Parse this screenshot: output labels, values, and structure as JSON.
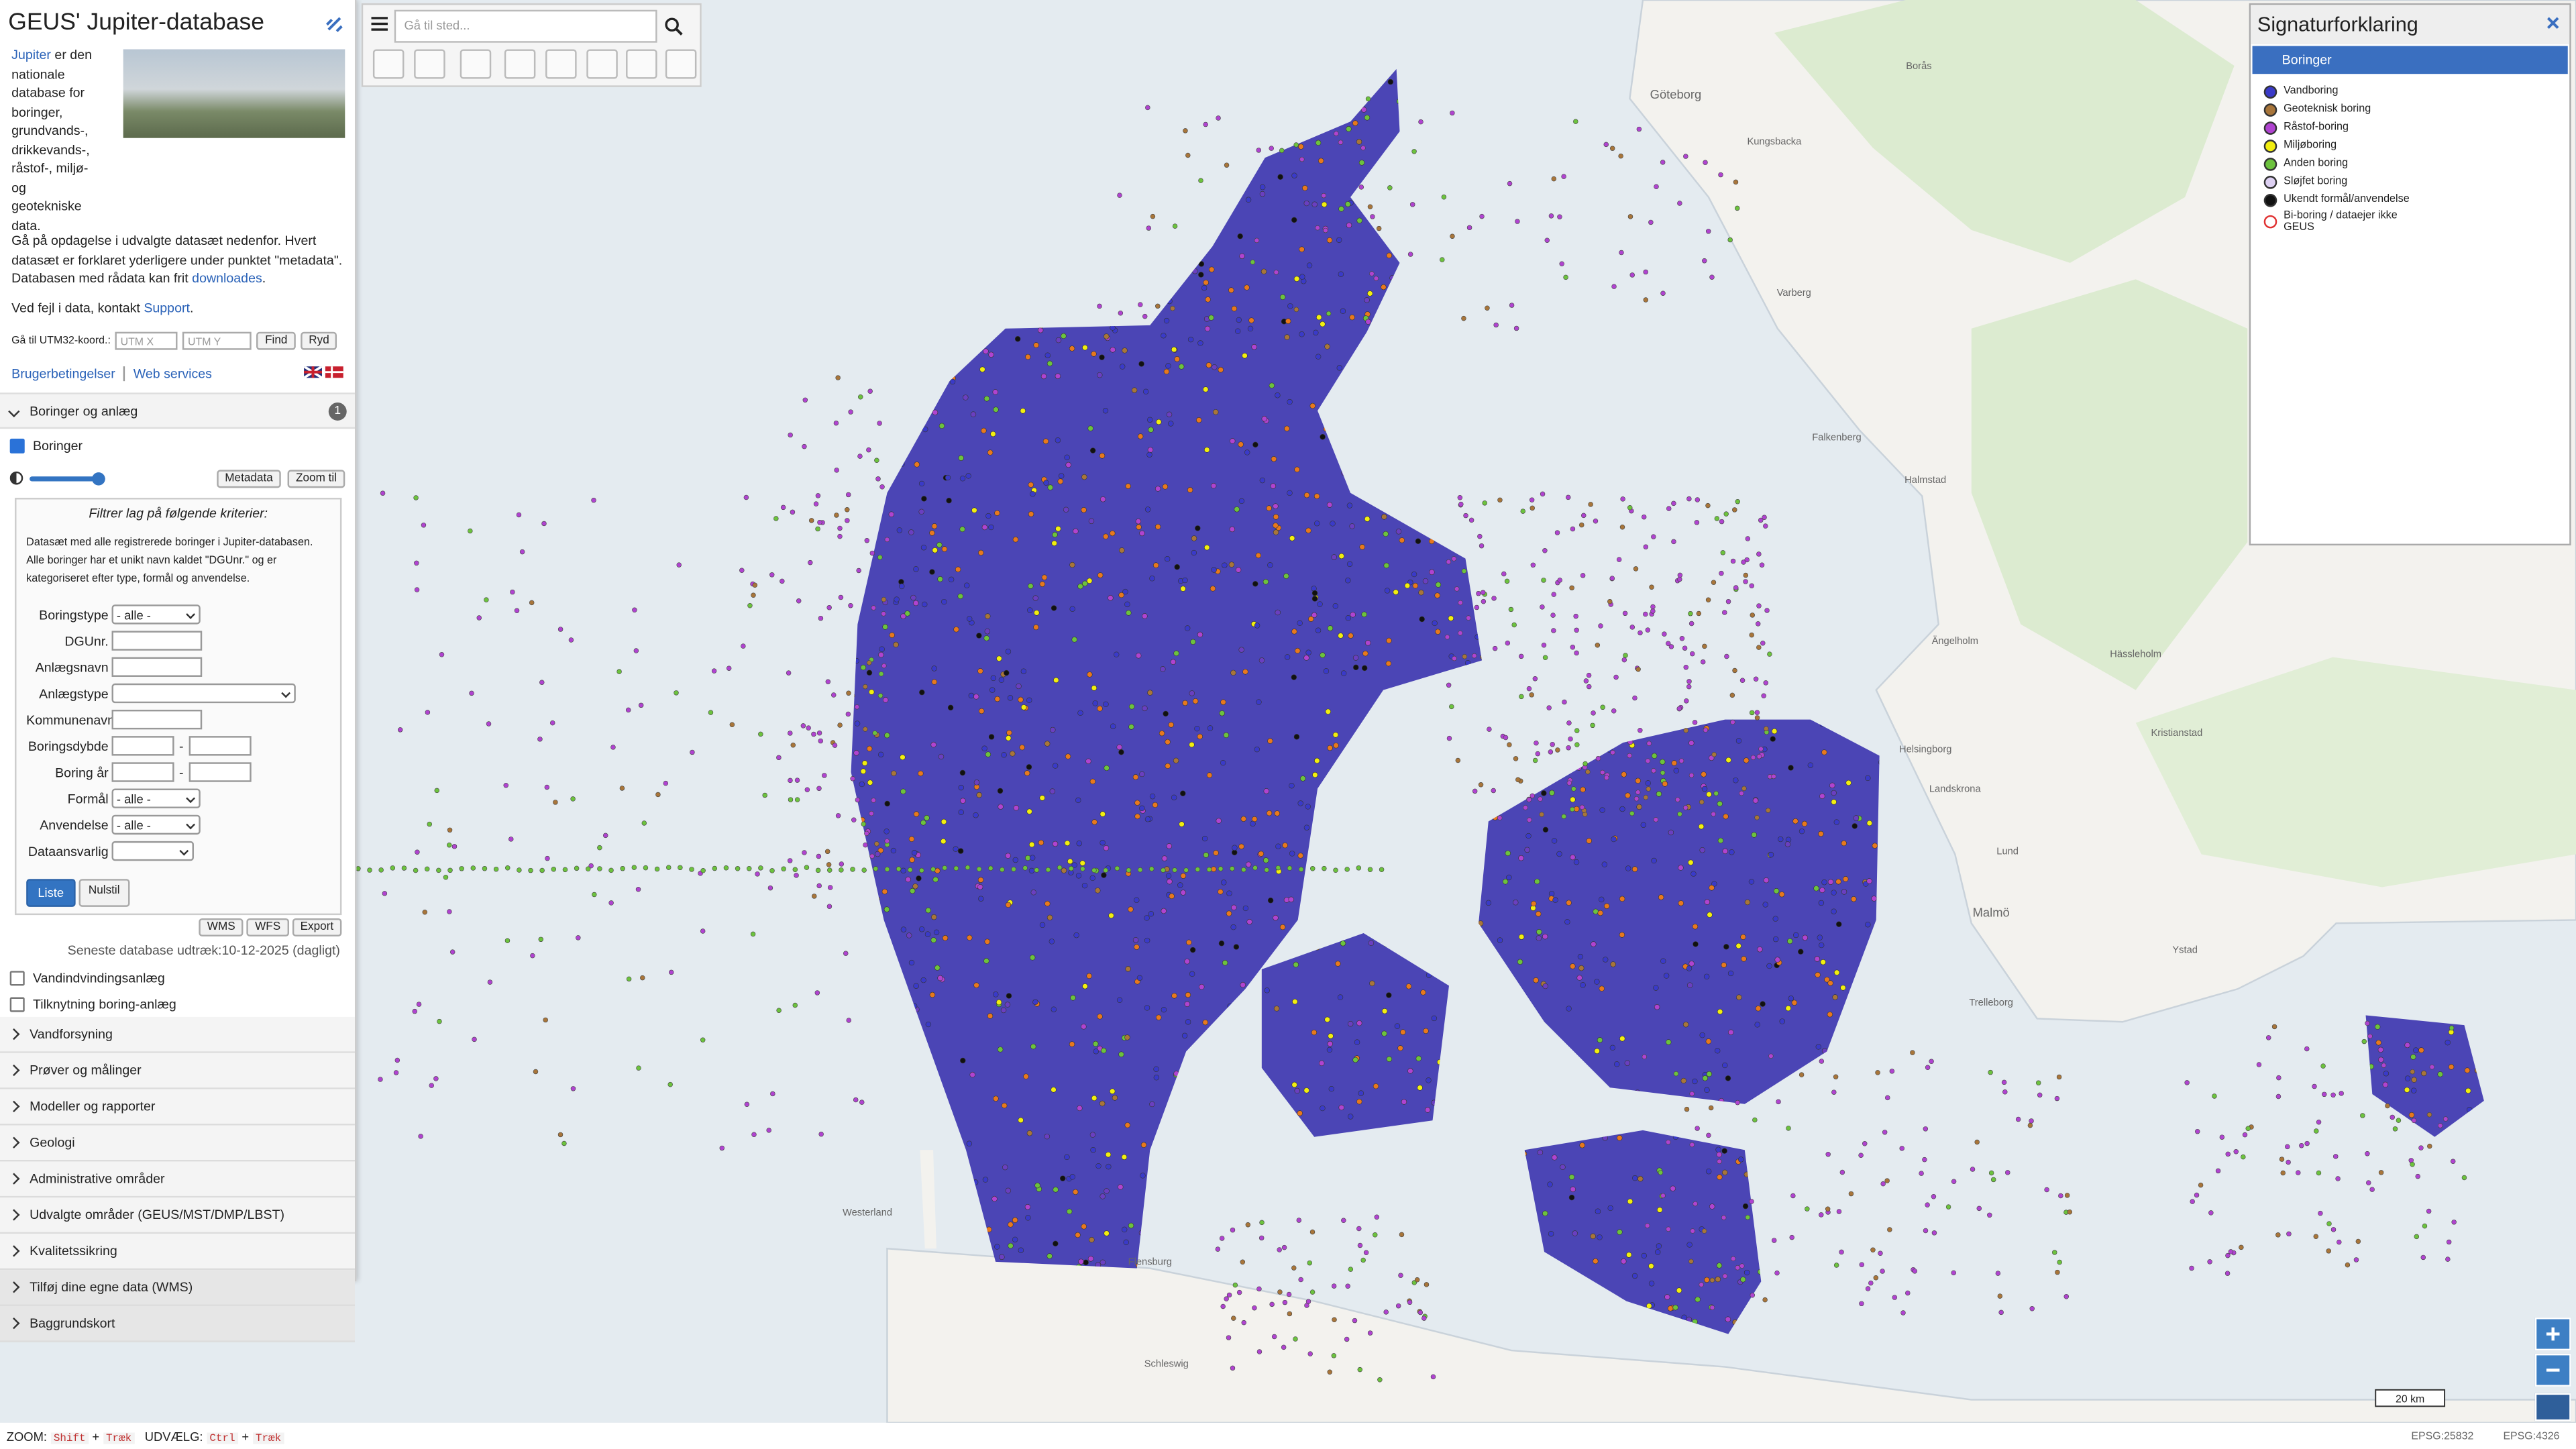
{
  "header": {
    "title": "GEUS' Jupiter-database"
  },
  "intro": {
    "link": "Jupiter",
    "text": "er den nationale database for boringer, grundvands-, drikkevands-, råstof-, miljø- og geotekniske data."
  },
  "explore": {
    "text": "Gå på opdagelse i udvalgte datasæt nedenfor. Hvert datasæt er forklaret yderligere under punktet \"metadata\". Databasen med rådata kan frit",
    "link": "downloades",
    "end": "."
  },
  "contact": {
    "text": "Ved fejl i data, kontakt",
    "link": "Support",
    "end": "."
  },
  "utm": {
    "label": "Gå til UTM32-koord.:",
    "x_placeholder": "UTM X",
    "y_placeholder": "UTM Y",
    "find": "Find",
    "clear": "Ryd"
  },
  "links": {
    "terms": "Brugerbetingelser",
    "services": "Web services"
  },
  "layer_group": {
    "title": "Boringer og anlæg",
    "badge": "1",
    "layer": "Boringer",
    "metadata": "Metadata",
    "zoom": "Zoom til",
    "filter_title": "Filtrer lag på følgende kriterier:",
    "filter_text": "Datasæt med alle registrerede boringer i Jupiter-databasen. Alle boringer har et unikt navn kaldet \"DGUnr.\" og er kategoriseret efter type, formål og anvendelse.",
    "fields": [
      {
        "label": "Boringstype",
        "kind": "select",
        "value": "- alle -"
      },
      {
        "label": "DGUnr.",
        "kind": "input"
      },
      {
        "label": "Anlægsnavn",
        "kind": "input"
      },
      {
        "label": "Anlægstype",
        "kind": "select-wide"
      },
      {
        "label": "Kommunenavn",
        "kind": "input"
      },
      {
        "label": "Boringsdybde",
        "kind": "range",
        "separator": "-"
      },
      {
        "label": "Boring år",
        "kind": "range",
        "separator": "-"
      },
      {
        "label": "Formål",
        "kind": "select",
        "value": "- alle -"
      },
      {
        "label": "Anvendelse",
        "kind": "select",
        "value": "- alle -"
      },
      {
        "label": "Dataansvarlig",
        "kind": "select-small"
      }
    ],
    "list_button": "Liste",
    "reset_button": "Nulstil",
    "exports": [
      "WMS",
      "WFS",
      "Export"
    ],
    "extract": "Seneste database udtræk:10-12-2025 (dagligt)",
    "other_layers": [
      "Vandindvindingsanlæg",
      "Tilknytning boring-anlæg"
    ]
  },
  "groups": [
    {
      "title": "Vandforsyning"
    },
    {
      "title": "Prøver og målinger"
    },
    {
      "title": "Modeller og rapporter"
    },
    {
      "title": "Geologi"
    },
    {
      "title": "Administrative områder"
    },
    {
      "title": "Udvalgte områder (GEUS/MST/DMP/LBST)"
    },
    {
      "title": "Kvalitetssikring"
    },
    {
      "title": "Tilføj dine egne data (WMS)",
      "shaded": true
    },
    {
      "title": "Baggrundskort",
      "shaded": true
    }
  ],
  "toolbar": {
    "search_placeholder": "Gå til sted..."
  },
  "legend": {
    "title": "Signaturforklaring",
    "group": "Boringer",
    "items": [
      {
        "label": "Vandboring",
        "color": "#3a3ac8"
      },
      {
        "label": "Geoteknisk boring",
        "color": "#a8753a"
      },
      {
        "label": "Råstof-boring",
        "color": "#b043d0"
      },
      {
        "label": "Miljøboring",
        "color": "#f2ee10"
      },
      {
        "label": "Anden boring",
        "color": "#6cc23e"
      },
      {
        "label": "Sløjfet boring",
        "color": "#ddd0f2"
      },
      {
        "label": "Ukendt formål/anvendelse",
        "color": "#111111"
      },
      {
        "label": "Bi-boring / dataejer ikke GEUS",
        "color": "#ffffff",
        "ring": "#e03030"
      }
    ]
  },
  "map": {
    "labels": [
      "Göteborg",
      "Borås",
      "Varberg",
      "Falkenberg",
      "Halmstad",
      "Ängelholm",
      "Helsingborg",
      "Landskrona",
      "Lund",
      "Malmö",
      "Trelleborg",
      "Kristianstad",
      "Flensburg",
      "Westerland",
      "Schleswig",
      "Kungsbacka",
      "Hässleholm",
      "Ystad"
    ],
    "scale": "20 km"
  },
  "statusbar": {
    "zoom": "ZOOM:",
    "zoom_keys": [
      "Shift",
      "+",
      "Træk"
    ],
    "select": "UDVÆLG:",
    "select_keys": [
      "Ctrl",
      "+",
      "Træk"
    ],
    "epsg1": "EPSG:25832",
    "epsg2": "EPSG:4326"
  }
}
